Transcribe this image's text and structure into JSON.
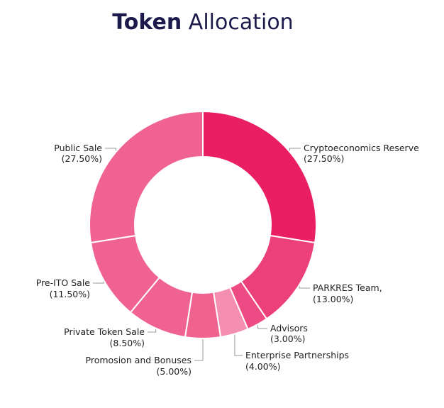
{
  "title": {
    "bold": "Token",
    "rest": "Allocation"
  },
  "chart_data": {
    "type": "pie",
    "donut": true,
    "title": "Token Allocation",
    "series": [
      {
        "name": "Cryptoeconomics Reserve",
        "value": 27.5,
        "label": "(27.50%)",
        "color": "#e91e63"
      },
      {
        "name": "PARKRES Team,",
        "value": 13.0,
        "label": "(13.00%)",
        "color": "#ec407a"
      },
      {
        "name": "Advisors",
        "value": 3.0,
        "label": "(3.00%)",
        "color": "#ee4b84"
      },
      {
        "name": "Enterprise Partnerships",
        "value": 4.0,
        "label": "(4.00%)",
        "color": "#f48fb1"
      },
      {
        "name": "Promosion and Bonuses",
        "value": 5.0,
        "label": "(5.00%)",
        "color": "#f0638f"
      },
      {
        "name": "Private Token Sale",
        "value": 8.5,
        "label": "(8.50%)",
        "color": "#f06292"
      },
      {
        "name": "Pre-ITO Sale",
        "value": 11.5,
        "label": "(11.50%)",
        "color": "#f06292"
      },
      {
        "name": "Public Sale",
        "value": 27.5,
        "label": "(27.50%)",
        "color": "#f06292"
      }
    ]
  }
}
